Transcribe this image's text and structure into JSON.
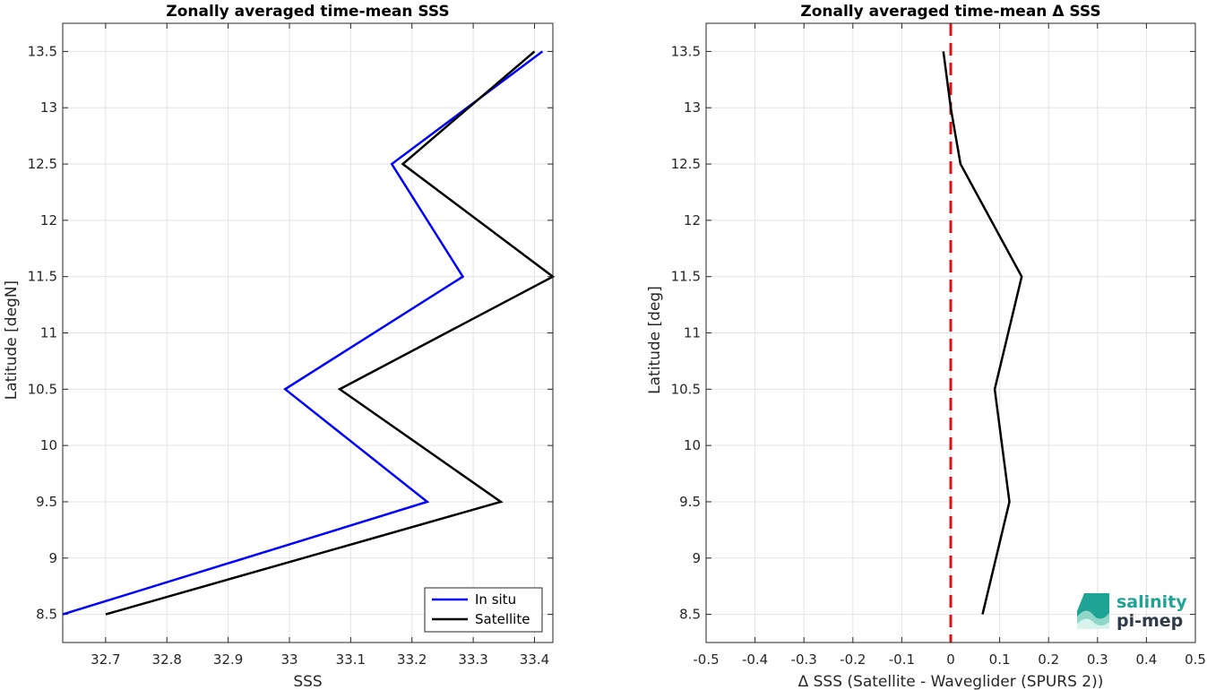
{
  "chart_data": [
    {
      "type": "line",
      "title": "Zonally averaged time-mean SSS",
      "xlabel": "SSS",
      "ylabel": "Latitude [degN]",
      "xlim": [
        32.63,
        33.43
      ],
      "ylim": [
        8.25,
        13.75
      ],
      "xticks": [
        32.7,
        32.8,
        32.9,
        33.0,
        33.1,
        33.2,
        33.3,
        33.4
      ],
      "xtick_labels": [
        "32.7",
        "32.8",
        "32.9",
        "33",
        "33.1",
        "33.2",
        "33.3",
        "33.4"
      ],
      "yticks": [
        8.5,
        9,
        9.5,
        10,
        10.5,
        11,
        11.5,
        12,
        12.5,
        13,
        13.5
      ],
      "ytick_labels": [
        "8.5",
        "9",
        "9.5",
        "10",
        "10.5",
        "11",
        "11.5",
        "12",
        "12.5",
        "13",
        "13.5"
      ],
      "grid": true,
      "legend_position": "bottom-right",
      "series": [
        {
          "name": "In situ",
          "color": "#0000ff",
          "points": [
            [
              32.63,
              8.5
            ],
            [
              33.225,
              9.5
            ],
            [
              32.993,
              10.5
            ],
            [
              33.283,
              11.5
            ],
            [
              33.167,
              12.5
            ],
            [
              33.413,
              13.5
            ]
          ]
        },
        {
          "name": "Satellite",
          "color": "#000000",
          "points": [
            [
              32.7,
              8.5
            ],
            [
              33.345,
              9.5
            ],
            [
              33.082,
              10.5
            ],
            [
              33.43,
              11.5
            ],
            [
              33.185,
              12.5
            ],
            [
              33.4,
              13.5
            ]
          ]
        }
      ]
    },
    {
      "type": "line",
      "title": "Zonally averaged time-mean Δ SSS",
      "xlabel": "Δ SSS (Satellite - Waveglider (SPURS 2))",
      "ylabel": "Latitude [deg]",
      "xlim": [
        -0.5,
        0.5
      ],
      "ylim": [
        8.25,
        13.75
      ],
      "xticks": [
        -0.5,
        -0.4,
        -0.3,
        -0.2,
        -0.1,
        0,
        0.1,
        0.2,
        0.3,
        0.4,
        0.5
      ],
      "xtick_labels": [
        "-0.5",
        "-0.4",
        "-0.3",
        "-0.2",
        "-0.1",
        "0",
        "0.1",
        "0.2",
        "0.3",
        "0.4",
        "0.5"
      ],
      "yticks": [
        8.5,
        9,
        9.5,
        10,
        10.5,
        11,
        11.5,
        12,
        12.5,
        13,
        13.5
      ],
      "ytick_labels": [
        "8.5",
        "9",
        "9.5",
        "10",
        "10.5",
        "11",
        "11.5",
        "12",
        "12.5",
        "13",
        "13.5"
      ],
      "grid": true,
      "reference_line": {
        "x": 0,
        "color": "#dd1111",
        "style": "dashed"
      },
      "series": [
        {
          "color": "#000000",
          "points": [
            [
              0.065,
              8.5
            ],
            [
              0.12,
              9.5
            ],
            [
              0.09,
              10.5
            ],
            [
              0.145,
              11.5
            ],
            [
              0.02,
              12.5
            ],
            [
              0.0,
              13.0
            ],
            [
              -0.015,
              13.5
            ]
          ]
        }
      ]
    }
  ],
  "logo": {
    "line1": "salinity",
    "line2": "pi-mep",
    "color_primary": "#1fa394",
    "color_dark": "#2f3b4a"
  }
}
